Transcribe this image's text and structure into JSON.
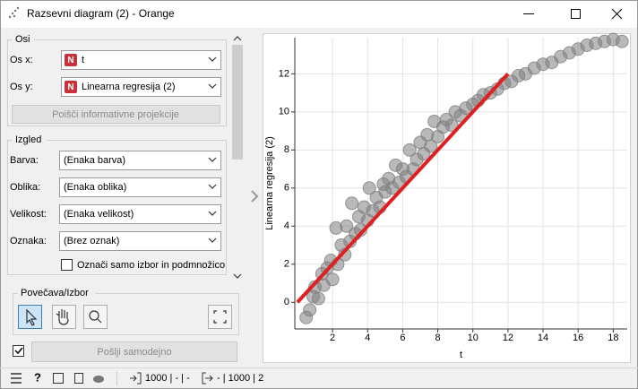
{
  "window": {
    "title": "Razsevni diagram (2) - Orange"
  },
  "axes_box": {
    "title": "Osi",
    "x_label": "Os x:",
    "x_value": "t",
    "y_label": "Os y:",
    "y_value": "Linearna regresija (2)",
    "badge": "N",
    "button": "Poišči informativne projekcije"
  },
  "appearance": {
    "title": "Izgled",
    "rows": [
      [
        "Barva:",
        "(Enaka barva)"
      ],
      [
        "Oblika:",
        "(Enaka oblika)"
      ],
      [
        "Velikost:",
        "(Enaka velikost)"
      ],
      [
        "Oznaka:",
        "(Brez oznak)"
      ]
    ],
    "checkbox": "Označi samo izbor in podmnožico"
  },
  "zoom": {
    "title": "Povečava/Izbor"
  },
  "send_button": "Pošlji samodejno",
  "status": {
    "input": "1000 | - | -",
    "output": "- | 1000 | 2"
  },
  "chart_data": {
    "type": "scatter",
    "x_label": "t",
    "y_label": "Linearna regresija (2)",
    "x": [
      0.5,
      0.7,
      0.9,
      1.0,
      1.2,
      1.4,
      1.5,
      1.7,
      1.9,
      2.0,
      2.2,
      2.3,
      2.5,
      2.7,
      2.8,
      3.0,
      3.1,
      3.3,
      3.5,
      3.6,
      3.8,
      4.0,
      4.1,
      4.3,
      4.5,
      4.7,
      4.9,
      5.0,
      5.2,
      5.4,
      5.6,
      5.8,
      6.0,
      6.2,
      6.4,
      6.6,
      6.8,
      7.0,
      7.2,
      7.4,
      7.6,
      7.8,
      8.0,
      8.3,
      8.5,
      8.8,
      9.0,
      9.3,
      9.6,
      10.0,
      10.3,
      10.6,
      11.0,
      11.4,
      11.8,
      12.2,
      12.6,
      13.0,
      13.5,
      14.0,
      14.5,
      15.0,
      15.5,
      16.0,
      16.5,
      17.0,
      17.5,
      18.0,
      18.5
    ],
    "values": [
      -0.8,
      -0.4,
      0.3,
      0.8,
      0.2,
      1.5,
      0.9,
      1.8,
      2.2,
      1.2,
      3.9,
      2.0,
      3.0,
      2.5,
      4.0,
      3.2,
      5.2,
      3.6,
      4.5,
      3.8,
      5.0,
      4.3,
      6.0,
      4.8,
      5.5,
      5.0,
      6.2,
      5.8,
      6.5,
      6.0,
      7.2,
      6.3,
      7.0,
      6.6,
      8.0,
      7.0,
      7.5,
      8.4,
      7.8,
      8.8,
      8.2,
      9.5,
      8.7,
      9.2,
      9.6,
      9.3,
      10.0,
      9.8,
      10.2,
      10.4,
      10.6,
      10.9,
      11.0,
      11.2,
      11.5,
      11.6,
      11.9,
      12.0,
      12.3,
      12.5,
      12.6,
      12.9,
      13.1,
      13.3,
      13.5,
      13.6,
      13.7,
      13.8,
      13.7
    ],
    "color": "#808080",
    "regression_line": {
      "x": [
        0,
        12
      ],
      "values": [
        0,
        12
      ],
      "color": "#e02020"
    },
    "xlim": [
      -0.15,
      18.8
    ],
    "ylim": [
      -1.4,
      13.9
    ],
    "xticks": [
      2,
      4,
      6,
      8,
      10,
      12,
      14,
      16,
      18
    ],
    "yticks": [
      0,
      2,
      4,
      6,
      8,
      10,
      12
    ],
    "grid": true
  }
}
